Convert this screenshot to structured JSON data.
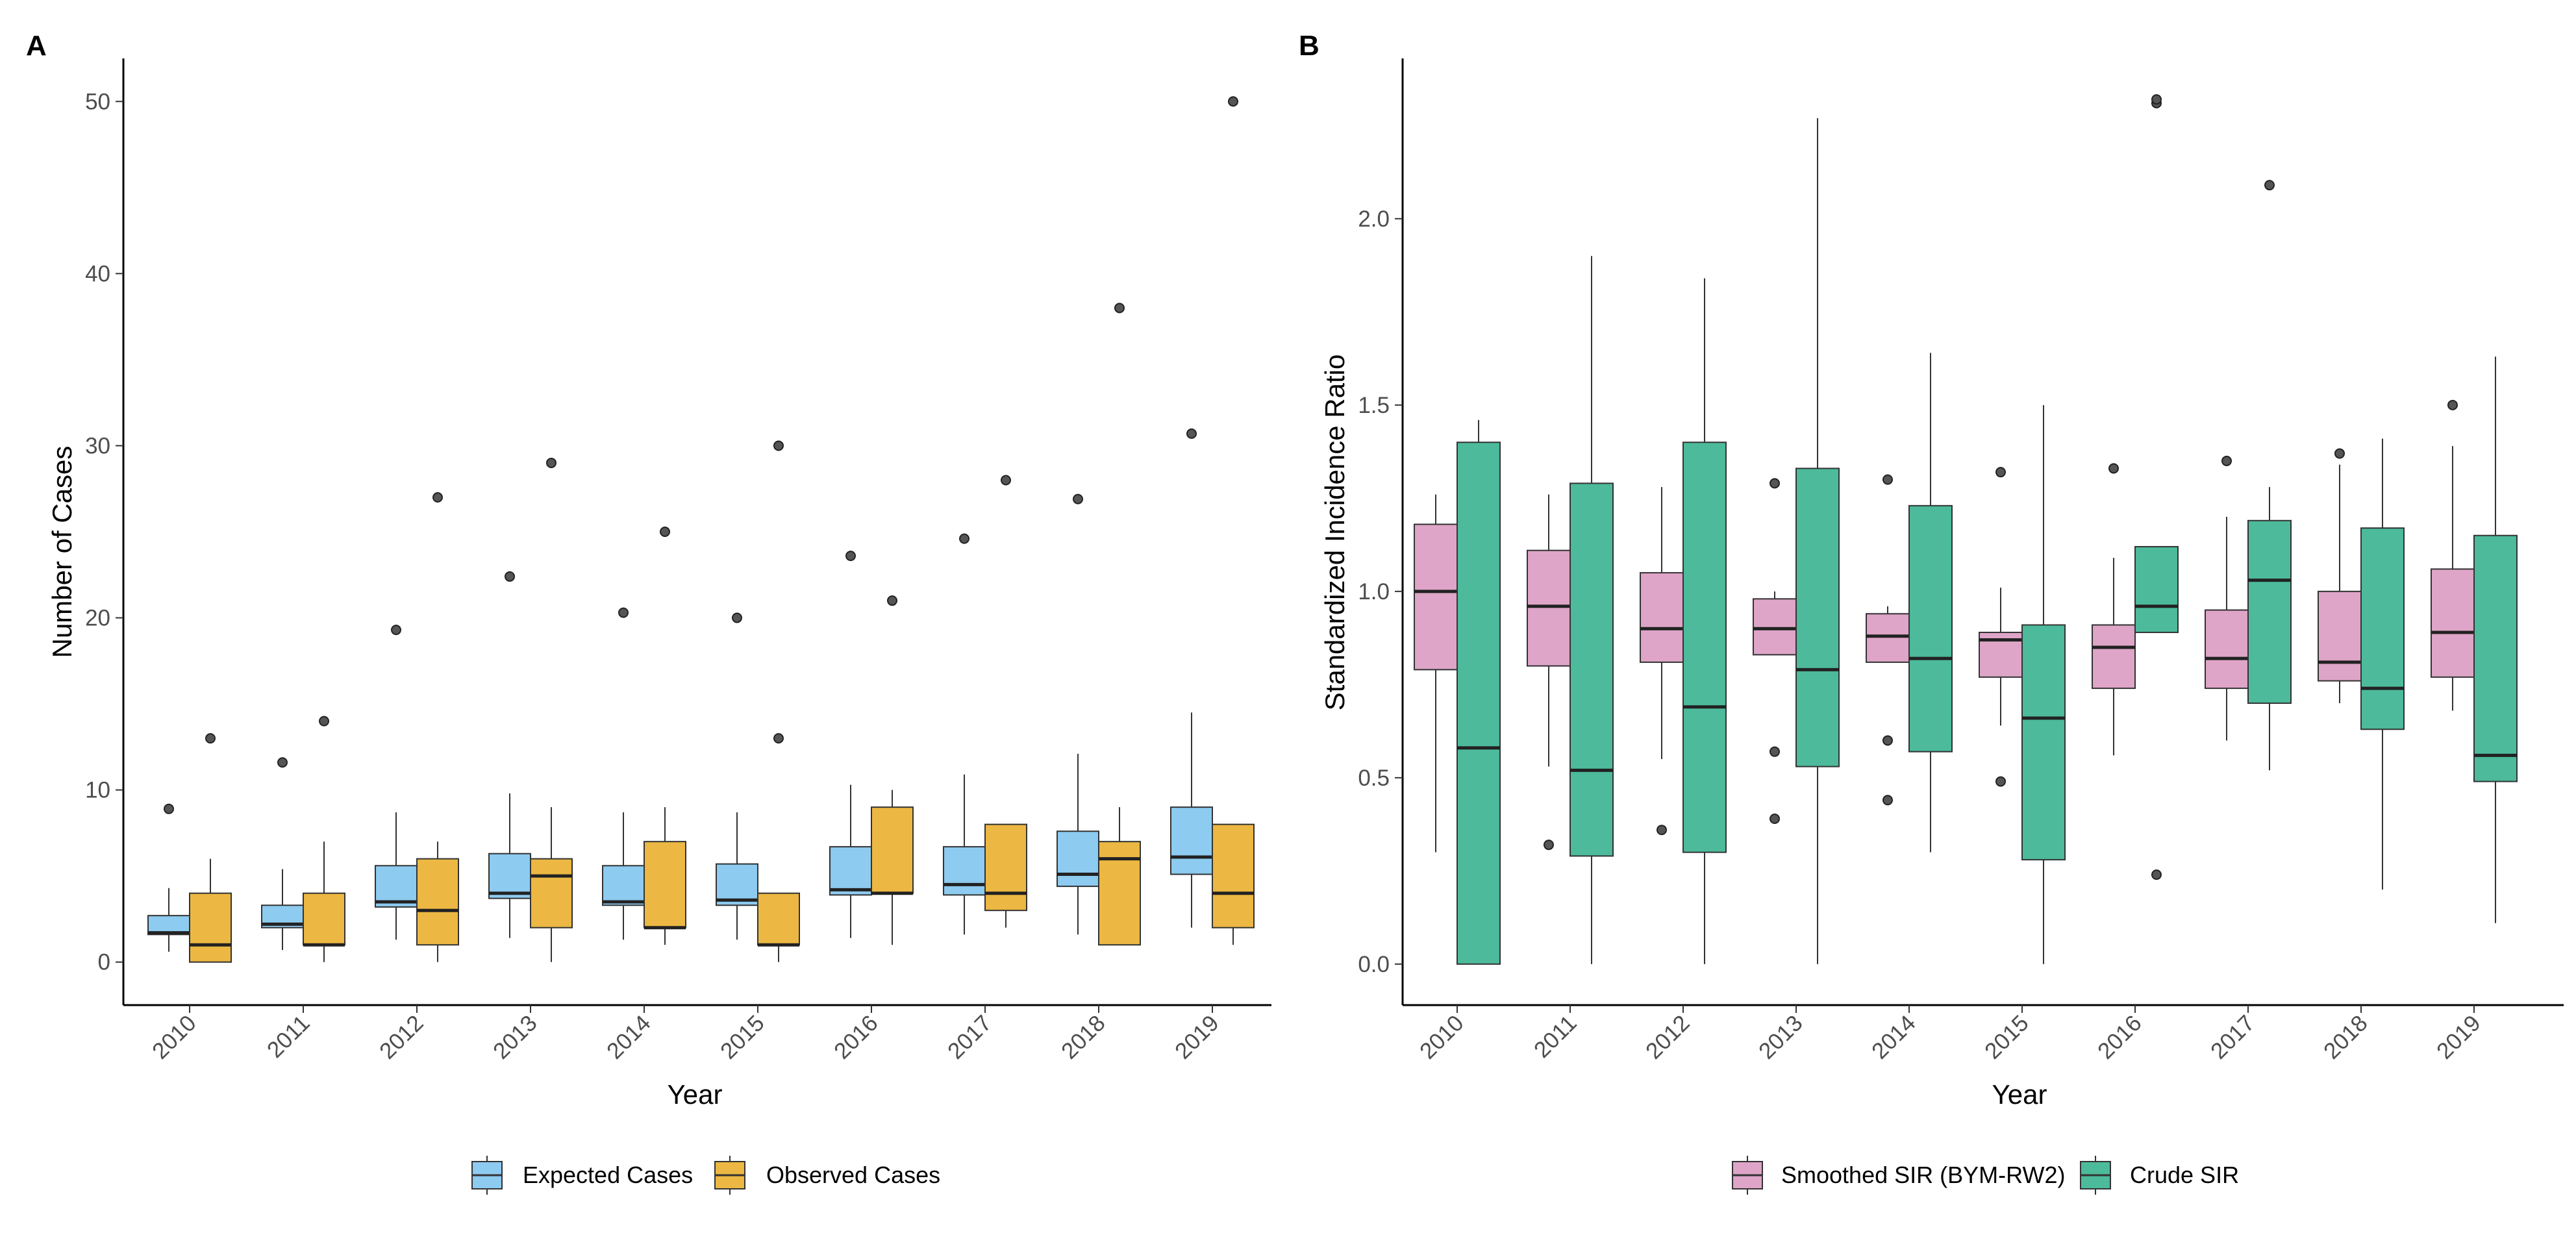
{
  "chart_data": [
    {
      "type": "box",
      "panel_label": "A",
      "xlabel": "Year",
      "ylabel": "Number of Cases",
      "ylim": [
        -2.5,
        52.5
      ],
      "yticks": [
        0,
        10,
        20,
        30,
        40,
        50
      ],
      "categories": [
        "2010",
        "2011",
        "2012",
        "2013",
        "2014",
        "2015",
        "2016",
        "2017",
        "2018",
        "2019"
      ],
      "legend_position": "bottom",
      "series": [
        {
          "name": "Expected Cases",
          "color": "#8DCBF0",
          "boxes": [
            {
              "min": 0.6,
              "q1": 1.6,
              "median": 1.7,
              "q3": 2.7,
              "max": 4.3,
              "outliers": [
                8.9
              ]
            },
            {
              "min": 0.7,
              "q1": 2.0,
              "median": 2.2,
              "q3": 3.3,
              "max": 5.4,
              "outliers": [
                11.6
              ]
            },
            {
              "min": 1.3,
              "q1": 3.2,
              "median": 3.5,
              "q3": 5.6,
              "max": 8.7,
              "outliers": [
                19.3
              ]
            },
            {
              "min": 1.4,
              "q1": 3.7,
              "median": 4.0,
              "q3": 6.3,
              "max": 9.8,
              "outliers": [
                22.4
              ]
            },
            {
              "min": 1.3,
              "q1": 3.3,
              "median": 3.5,
              "q3": 5.6,
              "max": 8.7,
              "outliers": [
                20.3
              ]
            },
            {
              "min": 1.3,
              "q1": 3.3,
              "median": 3.6,
              "q3": 5.7,
              "max": 8.7,
              "outliers": [
                20.0
              ]
            },
            {
              "min": 1.4,
              "q1": 3.9,
              "median": 4.2,
              "q3": 6.7,
              "max": 10.3,
              "outliers": [
                23.6
              ]
            },
            {
              "min": 1.6,
              "q1": 3.9,
              "median": 4.5,
              "q3": 6.7,
              "max": 10.9,
              "outliers": [
                24.6
              ]
            },
            {
              "min": 1.6,
              "q1": 4.4,
              "median": 5.1,
              "q3": 7.6,
              "max": 12.1,
              "outliers": [
                26.9
              ]
            },
            {
              "min": 2.0,
              "q1": 5.1,
              "median": 6.1,
              "q3": 9.0,
              "max": 14.5,
              "outliers": [
                30.7
              ]
            }
          ]
        },
        {
          "name": "Observed Cases",
          "color": "#ECB843",
          "boxes": [
            {
              "min": 0,
              "q1": 0,
              "median": 1,
              "q3": 4,
              "max": 6,
              "outliers": [
                13
              ]
            },
            {
              "min": 0,
              "q1": 1,
              "median": 1,
              "q3": 4,
              "max": 7,
              "outliers": [
                14
              ]
            },
            {
              "min": 0,
              "q1": 1,
              "median": 3,
              "q3": 6,
              "max": 7,
              "outliers": [
                27
              ]
            },
            {
              "min": 0,
              "q1": 2,
              "median": 5,
              "q3": 6,
              "max": 9,
              "outliers": [
                29
              ]
            },
            {
              "min": 1,
              "q1": 2,
              "median": 2,
              "q3": 7,
              "max": 9,
              "outliers": [
                25
              ]
            },
            {
              "min": 0,
              "q1": 1,
              "median": 1,
              "q3": 4,
              "max": 4,
              "outliers": [
                13,
                30
              ]
            },
            {
              "min": 1,
              "q1": 4,
              "median": 4,
              "q3": 9,
              "max": 10,
              "outliers": [
                21
              ]
            },
            {
              "min": 2,
              "q1": 3,
              "median": 4,
              "q3": 8,
              "max": 8,
              "outliers": [
                28
              ]
            },
            {
              "min": 1,
              "q1": 1,
              "median": 6,
              "q3": 7,
              "max": 9,
              "outliers": [
                38
              ]
            },
            {
              "min": 1,
              "q1": 2,
              "median": 4,
              "q3": 8,
              "max": 8,
              "outliers": [
                50
              ]
            }
          ]
        }
      ]
    },
    {
      "type": "box",
      "panel_label": "B",
      "xlabel": "Year",
      "ylabel": "Standardized Incidence Ratio",
      "ylim": [
        -0.11,
        2.43
      ],
      "yticks": [
        0.0,
        0.5,
        1.0,
        1.5,
        2.0
      ],
      "categories": [
        "2010",
        "2011",
        "2012",
        "2013",
        "2014",
        "2015",
        "2016",
        "2017",
        "2018",
        "2019"
      ],
      "legend_position": "bottom",
      "series": [
        {
          "name": "Smoothed SIR (BYM-RW2)",
          "color": "#DEA5C8",
          "boxes": [
            {
              "min": 0.3,
              "q1": 0.79,
              "median": 1.0,
              "q3": 1.18,
              "max": 1.26,
              "outliers": []
            },
            {
              "min": 0.53,
              "q1": 0.8,
              "median": 0.96,
              "q3": 1.11,
              "max": 1.26,
              "outliers": [
                0.32
              ]
            },
            {
              "min": 0.55,
              "q1": 0.81,
              "median": 0.9,
              "q3": 1.05,
              "max": 1.28,
              "outliers": [
                0.36
              ]
            },
            {
              "min": 0.83,
              "q1": 0.83,
              "median": 0.9,
              "q3": 0.98,
              "max": 1.0,
              "outliers": [
                1.29,
                0.57,
                0.39
              ]
            },
            {
              "min": 0.81,
              "q1": 0.81,
              "median": 0.88,
              "q3": 0.94,
              "max": 0.96,
              "outliers": [
                1.3,
                0.6,
                0.44
              ]
            },
            {
              "min": 0.64,
              "q1": 0.77,
              "median": 0.87,
              "q3": 0.89,
              "max": 1.01,
              "outliers": [
                1.32,
                0.49
              ]
            },
            {
              "min": 0.56,
              "q1": 0.74,
              "median": 0.85,
              "q3": 0.91,
              "max": 1.09,
              "outliers": [
                1.33
              ]
            },
            {
              "min": 0.6,
              "q1": 0.74,
              "median": 0.82,
              "q3": 0.95,
              "max": 1.2,
              "outliers": [
                1.35
              ]
            },
            {
              "min": 0.7,
              "q1": 0.76,
              "median": 0.81,
              "q3": 1.0,
              "max": 1.34,
              "outliers": [
                1.37
              ]
            },
            {
              "min": 0.68,
              "q1": 0.77,
              "median": 0.89,
              "q3": 1.06,
              "max": 1.39,
              "outliers": [
                1.5
              ]
            }
          ]
        },
        {
          "name": "Crude SIR",
          "color": "#4CBA9B",
          "boxes": [
            {
              "min": 0.0,
              "q1": 0.0,
              "median": 0.58,
              "q3": 1.4,
              "max": 1.46,
              "outliers": []
            },
            {
              "min": 0.0,
              "q1": 0.29,
              "median": 0.52,
              "q3": 1.29,
              "max": 1.9,
              "outliers": []
            },
            {
              "min": 0.0,
              "q1": 0.3,
              "median": 0.69,
              "q3": 1.4,
              "max": 1.84,
              "outliers": []
            },
            {
              "min": 0.0,
              "q1": 0.53,
              "median": 0.79,
              "q3": 1.33,
              "max": 2.27,
              "outliers": []
            },
            {
              "min": 0.3,
              "q1": 0.57,
              "median": 0.82,
              "q3": 1.23,
              "max": 1.64,
              "outliers": []
            },
            {
              "min": 0.0,
              "q1": 0.28,
              "median": 0.66,
              "q3": 0.91,
              "max": 1.5,
              "outliers": []
            },
            {
              "min": 0.89,
              "q1": 0.89,
              "median": 0.96,
              "q3": 1.12,
              "max": 1.12,
              "outliers": [
                2.31,
                2.32,
                0.24
              ]
            },
            {
              "min": 0.52,
              "q1": 0.7,
              "median": 1.03,
              "q3": 1.19,
              "max": 1.28,
              "outliers": [
                2.09
              ]
            },
            {
              "min": 0.2,
              "q1": 0.63,
              "median": 0.74,
              "q3": 1.17,
              "max": 1.41,
              "outliers": []
            },
            {
              "min": 0.11,
              "q1": 0.49,
              "median": 0.56,
              "q3": 1.15,
              "max": 1.63,
              "outliers": []
            }
          ]
        }
      ]
    }
  ]
}
